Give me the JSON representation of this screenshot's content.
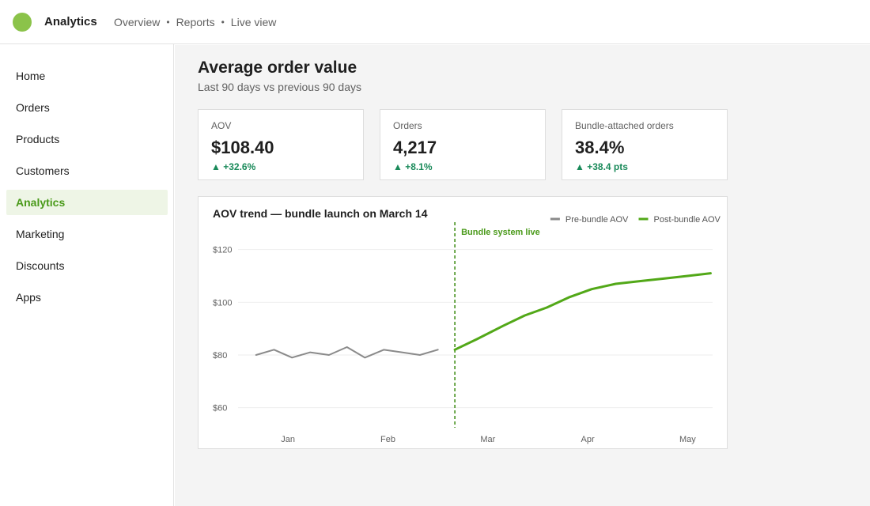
{
  "app": {
    "title": "Analytics"
  },
  "topnav": [
    "Overview",
    "Reports",
    "Live view"
  ],
  "topnav_separator": "•",
  "sidebar": {
    "items": [
      {
        "label": "Home",
        "active": false
      },
      {
        "label": "Orders",
        "active": false
      },
      {
        "label": "Products",
        "active": false
      },
      {
        "label": "Customers",
        "active": false
      },
      {
        "label": "Analytics",
        "active": true
      },
      {
        "label": "Marketing",
        "active": false
      },
      {
        "label": "Discounts",
        "active": false
      },
      {
        "label": "Apps",
        "active": false
      }
    ]
  },
  "page": {
    "title": "Average order value",
    "subtitle": "Last 90 days vs previous 90 days"
  },
  "kpis": [
    {
      "label": "AOV",
      "value": "$108.40",
      "delta": "▲ +32.6%"
    },
    {
      "label": "Orders",
      "value": "4,217",
      "delta": "▲ +8.1%"
    },
    {
      "label": "Bundle-attached orders",
      "value": "38.4%",
      "delta": "▲ +38.4 pts"
    }
  ],
  "colors": {
    "accent": "#4a9a1a",
    "pre_series": "#8a8a8a",
    "post_series": "#52a818",
    "positive": "#1a8a5a",
    "logo": "#8bc34a"
  },
  "chart_data": {
    "type": "line",
    "title": "AOV trend — bundle launch on March 14",
    "legend_position": "top-right",
    "grid": true,
    "ylim": [
      50,
      128
    ],
    "yticks": [
      60,
      80,
      100,
      120
    ],
    "ytick_labels": [
      "$60",
      "$80",
      "$100",
      "$120"
    ],
    "xlim": [
      -0.5,
      4.25
    ],
    "xticks": [
      0,
      1,
      2,
      3,
      4
    ],
    "xtick_labels": [
      "Jan",
      "Feb",
      "Mar",
      "Apr",
      "May"
    ],
    "annotation": {
      "x": 1.67,
      "label": "Bundle system live"
    },
    "series": [
      {
        "name": "Pre-bundle AOV",
        "color": "#8a8a8a",
        "x": [
          -0.32,
          -0.14,
          0.04,
          0.22,
          0.41,
          0.59,
          0.77,
          0.96,
          1.14,
          1.32,
          1.5
        ],
        "y": [
          80,
          82,
          79,
          81,
          80,
          83,
          79,
          82,
          81,
          80,
          82
        ]
      },
      {
        "name": "Post-bundle AOV",
        "color": "#52a818",
        "x": [
          1.67,
          1.89,
          2.15,
          2.37,
          2.59,
          2.82,
          3.04,
          3.28,
          3.52,
          3.76,
          4.0,
          4.23
        ],
        "y": [
          82,
          86,
          91,
          95,
          98,
          102,
          105,
          107,
          108,
          109,
          110,
          111
        ]
      }
    ]
  }
}
